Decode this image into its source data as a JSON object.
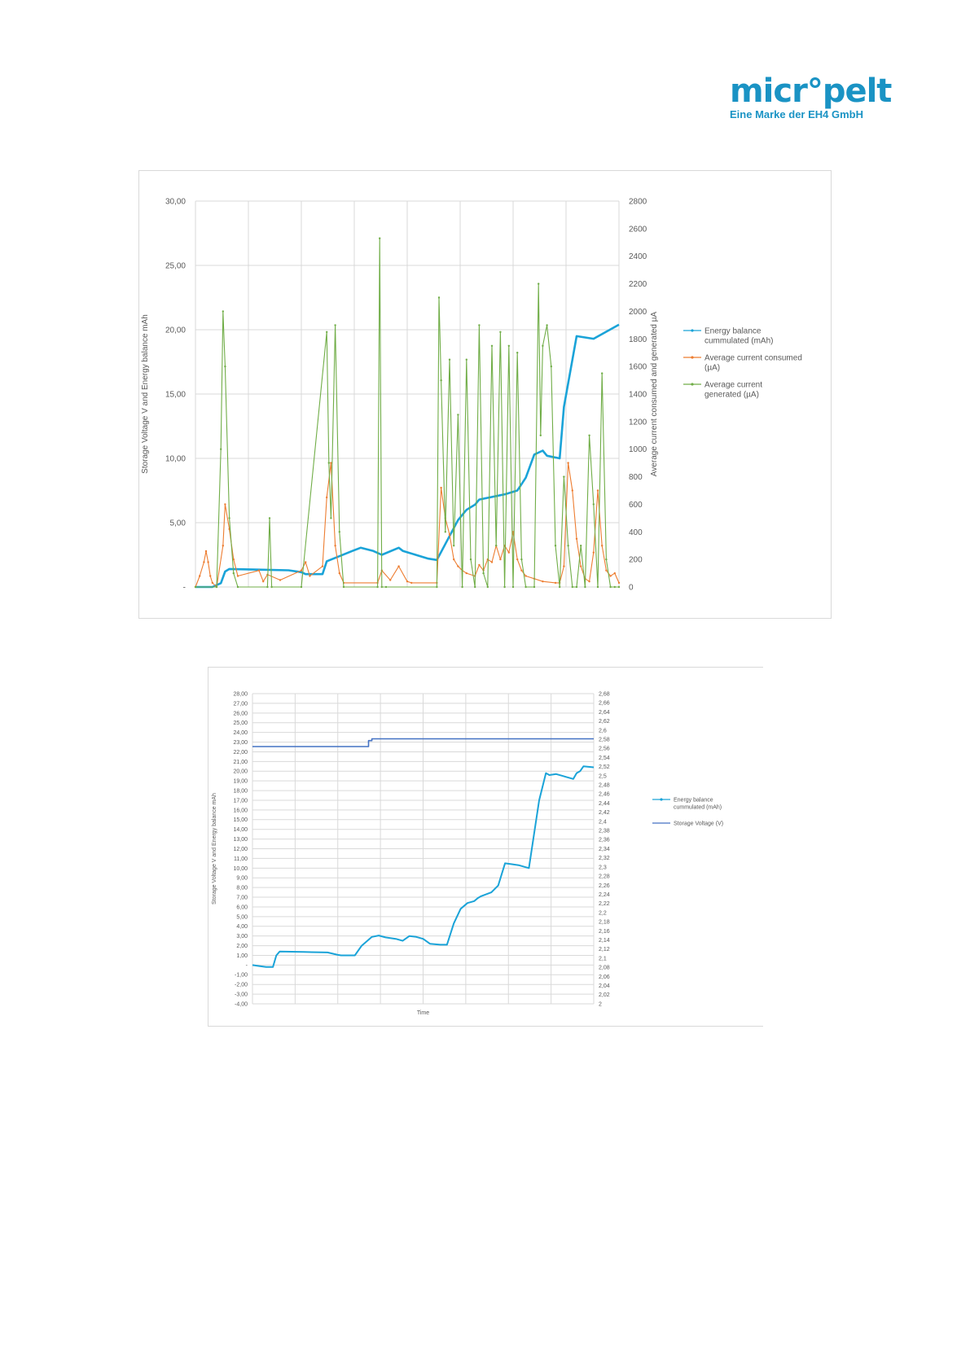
{
  "logo": {
    "word": "micr°pelt",
    "tagline": "Eine Marke der EH4 GmbH"
  },
  "colors": {
    "energy": "#1aa3d8",
    "consumed": "#ed7d31",
    "generated": "#70ad47",
    "voltage": "#4472c4",
    "brand": "#1a93c4"
  },
  "chart_data": [
    {
      "type": "line",
      "xlabel": "",
      "ylabel": "Storage Voltage V and Energy balance mAh",
      "y2label": "Average current consumed and generated µA",
      "ylim": [
        0,
        30
      ],
      "y2lim": [
        0,
        2800
      ],
      "yticks": [
        "-",
        "5,00",
        "10,00",
        "15,00",
        "20,00",
        "25,00",
        "30,00"
      ],
      "y2ticks": [
        "0",
        "200",
        "400",
        "600",
        "800",
        "1000",
        "1200",
        "1400",
        "1600",
        "1800",
        "2000",
        "2200",
        "2400",
        "2600",
        "2800"
      ],
      "grid": true,
      "legend": "right",
      "series": [
        {
          "name": "Energy balance cummulated (mAh)",
          "axis": "left",
          "x": [
            0,
            4,
            6,
            7,
            8,
            15,
            22,
            25,
            26,
            30,
            31,
            37,
            39,
            42,
            44,
            48,
            49,
            52,
            55,
            57,
            62,
            64,
            66,
            67,
            73,
            76,
            78,
            80,
            82,
            83,
            86,
            87,
            90,
            94,
            100
          ],
          "y": [
            0,
            0,
            0.3,
            1.2,
            1.4,
            1.35,
            1.3,
            1.15,
            1.0,
            1.0,
            2.0,
            2.8,
            3.05,
            2.8,
            2.5,
            3.05,
            2.8,
            2.5,
            2.2,
            2.1,
            5.2,
            6.0,
            6.4,
            6.8,
            7.2,
            7.5,
            8.5,
            10.3,
            10.6,
            10.2,
            10.0,
            14.0,
            19.5,
            19.3,
            20.4
          ]
        },
        {
          "name": "Average current consumed (µA)",
          "axis": "right",
          "x": [
            0,
            1,
            2,
            2.5,
            3,
            3.5,
            4,
            5,
            6.5,
            7,
            8,
            9,
            10,
            15,
            16,
            17,
            20,
            25,
            26,
            27,
            30,
            31,
            32,
            33,
            34,
            35,
            43,
            44,
            46,
            48,
            50,
            51,
            57,
            58,
            59,
            60,
            61,
            62,
            63,
            64,
            66,
            67,
            68,
            69,
            70,
            71,
            72,
            73,
            74,
            75,
            76,
            77,
            78,
            80,
            82,
            85,
            86,
            87,
            88,
            89,
            90,
            91,
            92,
            93,
            94,
            95,
            96,
            97,
            98,
            99,
            100
          ],
          "y": [
            0,
            80,
            180,
            260,
            180,
            80,
            30,
            0,
            300,
            600,
            420,
            200,
            80,
            120,
            40,
            90,
            50,
            120,
            180,
            80,
            150,
            650,
            900,
            300,
            100,
            30,
            30,
            120,
            50,
            150,
            40,
            30,
            30,
            720,
            500,
            380,
            200,
            150,
            120,
            100,
            80,
            160,
            120,
            200,
            180,
            300,
            200,
            300,
            250,
            400,
            200,
            120,
            80,
            60,
            40,
            30,
            30,
            150,
            900,
            700,
            350,
            150,
            60,
            40,
            250,
            700,
            300,
            120,
            80,
            100,
            30
          ]
        },
        {
          "name": "Average current generated (µA)",
          "axis": "right",
          "x": [
            0,
            5,
            6,
            6.5,
            7,
            8,
            9,
            10,
            17,
            17.5,
            18,
            25,
            31,
            31.5,
            32,
            33,
            34,
            35,
            43,
            43.5,
            44,
            45,
            57,
            57.5,
            58,
            59,
            60,
            61,
            62,
            63,
            64,
            65,
            66,
            67,
            68,
            69,
            70,
            71,
            72,
            73,
            74,
            75,
            76,
            77,
            78,
            80,
            81,
            81.5,
            82,
            83,
            84,
            85,
            86,
            87,
            88,
            89,
            90,
            91,
            92,
            93,
            94,
            95,
            96,
            97,
            98,
            99,
            100
          ],
          "y": [
            0,
            0,
            1000,
            2000,
            1600,
            500,
            100,
            0,
            0,
            500,
            0,
            0,
            1850,
            900,
            500,
            1900,
            400,
            0,
            0,
            2530,
            0,
            0,
            0,
            2100,
            1500,
            400,
            1650,
            300,
            1250,
            0,
            1650,
            200,
            0,
            1900,
            100,
            0,
            1750,
            300,
            1850,
            0,
            1750,
            0,
            1700,
            200,
            0,
            0,
            2200,
            1100,
            1750,
            1900,
            1600,
            300,
            0,
            800,
            300,
            0,
            0,
            300,
            0,
            1100,
            600,
            0,
            1550,
            200,
            0,
            0,
            0
          ]
        }
      ]
    },
    {
      "type": "line",
      "xlabel": "Time",
      "ylabel": "Storage Voltage V and Energy balance mAh",
      "ylim": [
        -4,
        28
      ],
      "y2lim": [
        2,
        2.68
      ],
      "yticks": [
        "-4,00",
        "-3,00",
        "-2,00",
        "-1,00",
        "-",
        "1,00",
        "2,00",
        "3,00",
        "4,00",
        "5,00",
        "6,00",
        "7,00",
        "8,00",
        "9,00",
        "10,00",
        "11,00",
        "12,00",
        "13,00",
        "14,00",
        "15,00",
        "16,00",
        "17,00",
        "18,00",
        "19,00",
        "20,00",
        "21,00",
        "22,00",
        "23,00",
        "24,00",
        "25,00",
        "26,00",
        "27,00",
        "28,00"
      ],
      "y2ticks": [
        "2",
        "2,02",
        "2,04",
        "2,06",
        "2,08",
        "2,1",
        "2,12",
        "2,14",
        "2,16",
        "2,18",
        "2,2",
        "2,22",
        "2,24",
        "2,26",
        "2,28",
        "2,3",
        "2,32",
        "2,34",
        "2,36",
        "2,38",
        "2,4",
        "2,42",
        "2,44",
        "2,46",
        "2,48",
        "2,5",
        "2,52",
        "2,54",
        "2,56",
        "2,58",
        "2,6",
        "2,62",
        "2,64",
        "2,66",
        "2,68"
      ],
      "grid": true,
      "legend": "right",
      "series": [
        {
          "name": "Energy balance cummulated (mAh)",
          "axis": "left",
          "x": [
            0,
            2,
            4,
            6,
            7,
            8,
            15,
            22,
            25,
            26,
            30,
            32,
            35,
            37,
            39,
            42,
            44,
            46,
            48,
            50,
            52,
            55,
            57,
            59,
            61,
            63,
            65,
            66,
            67,
            70,
            72,
            74,
            76,
            78,
            81,
            84,
            86,
            87,
            89,
            91,
            92,
            94,
            95,
            96,
            97,
            100
          ],
          "y": [
            0,
            -0.1,
            -0.2,
            -0.2,
            1.0,
            1.4,
            1.35,
            1.3,
            1.05,
            1.0,
            1.0,
            2.0,
            2.9,
            3.05,
            2.85,
            2.7,
            2.5,
            3.0,
            2.9,
            2.7,
            2.2,
            2.1,
            2.1,
            4.3,
            5.8,
            6.4,
            6.6,
            6.9,
            7.1,
            7.5,
            8.2,
            10.5,
            10.4,
            10.3,
            10.0,
            17.0,
            19.8,
            19.6,
            19.7,
            19.5,
            19.4,
            19.2,
            19.8,
            20.0,
            20.5,
            20.4
          ]
        },
        {
          "name": "Storage Voltage (V)",
          "axis": "right",
          "x": [
            0,
            34,
            34,
            35,
            35,
            100
          ],
          "y": [
            2.564,
            2.564,
            2.577,
            2.577,
            2.581,
            2.581
          ]
        }
      ]
    }
  ]
}
